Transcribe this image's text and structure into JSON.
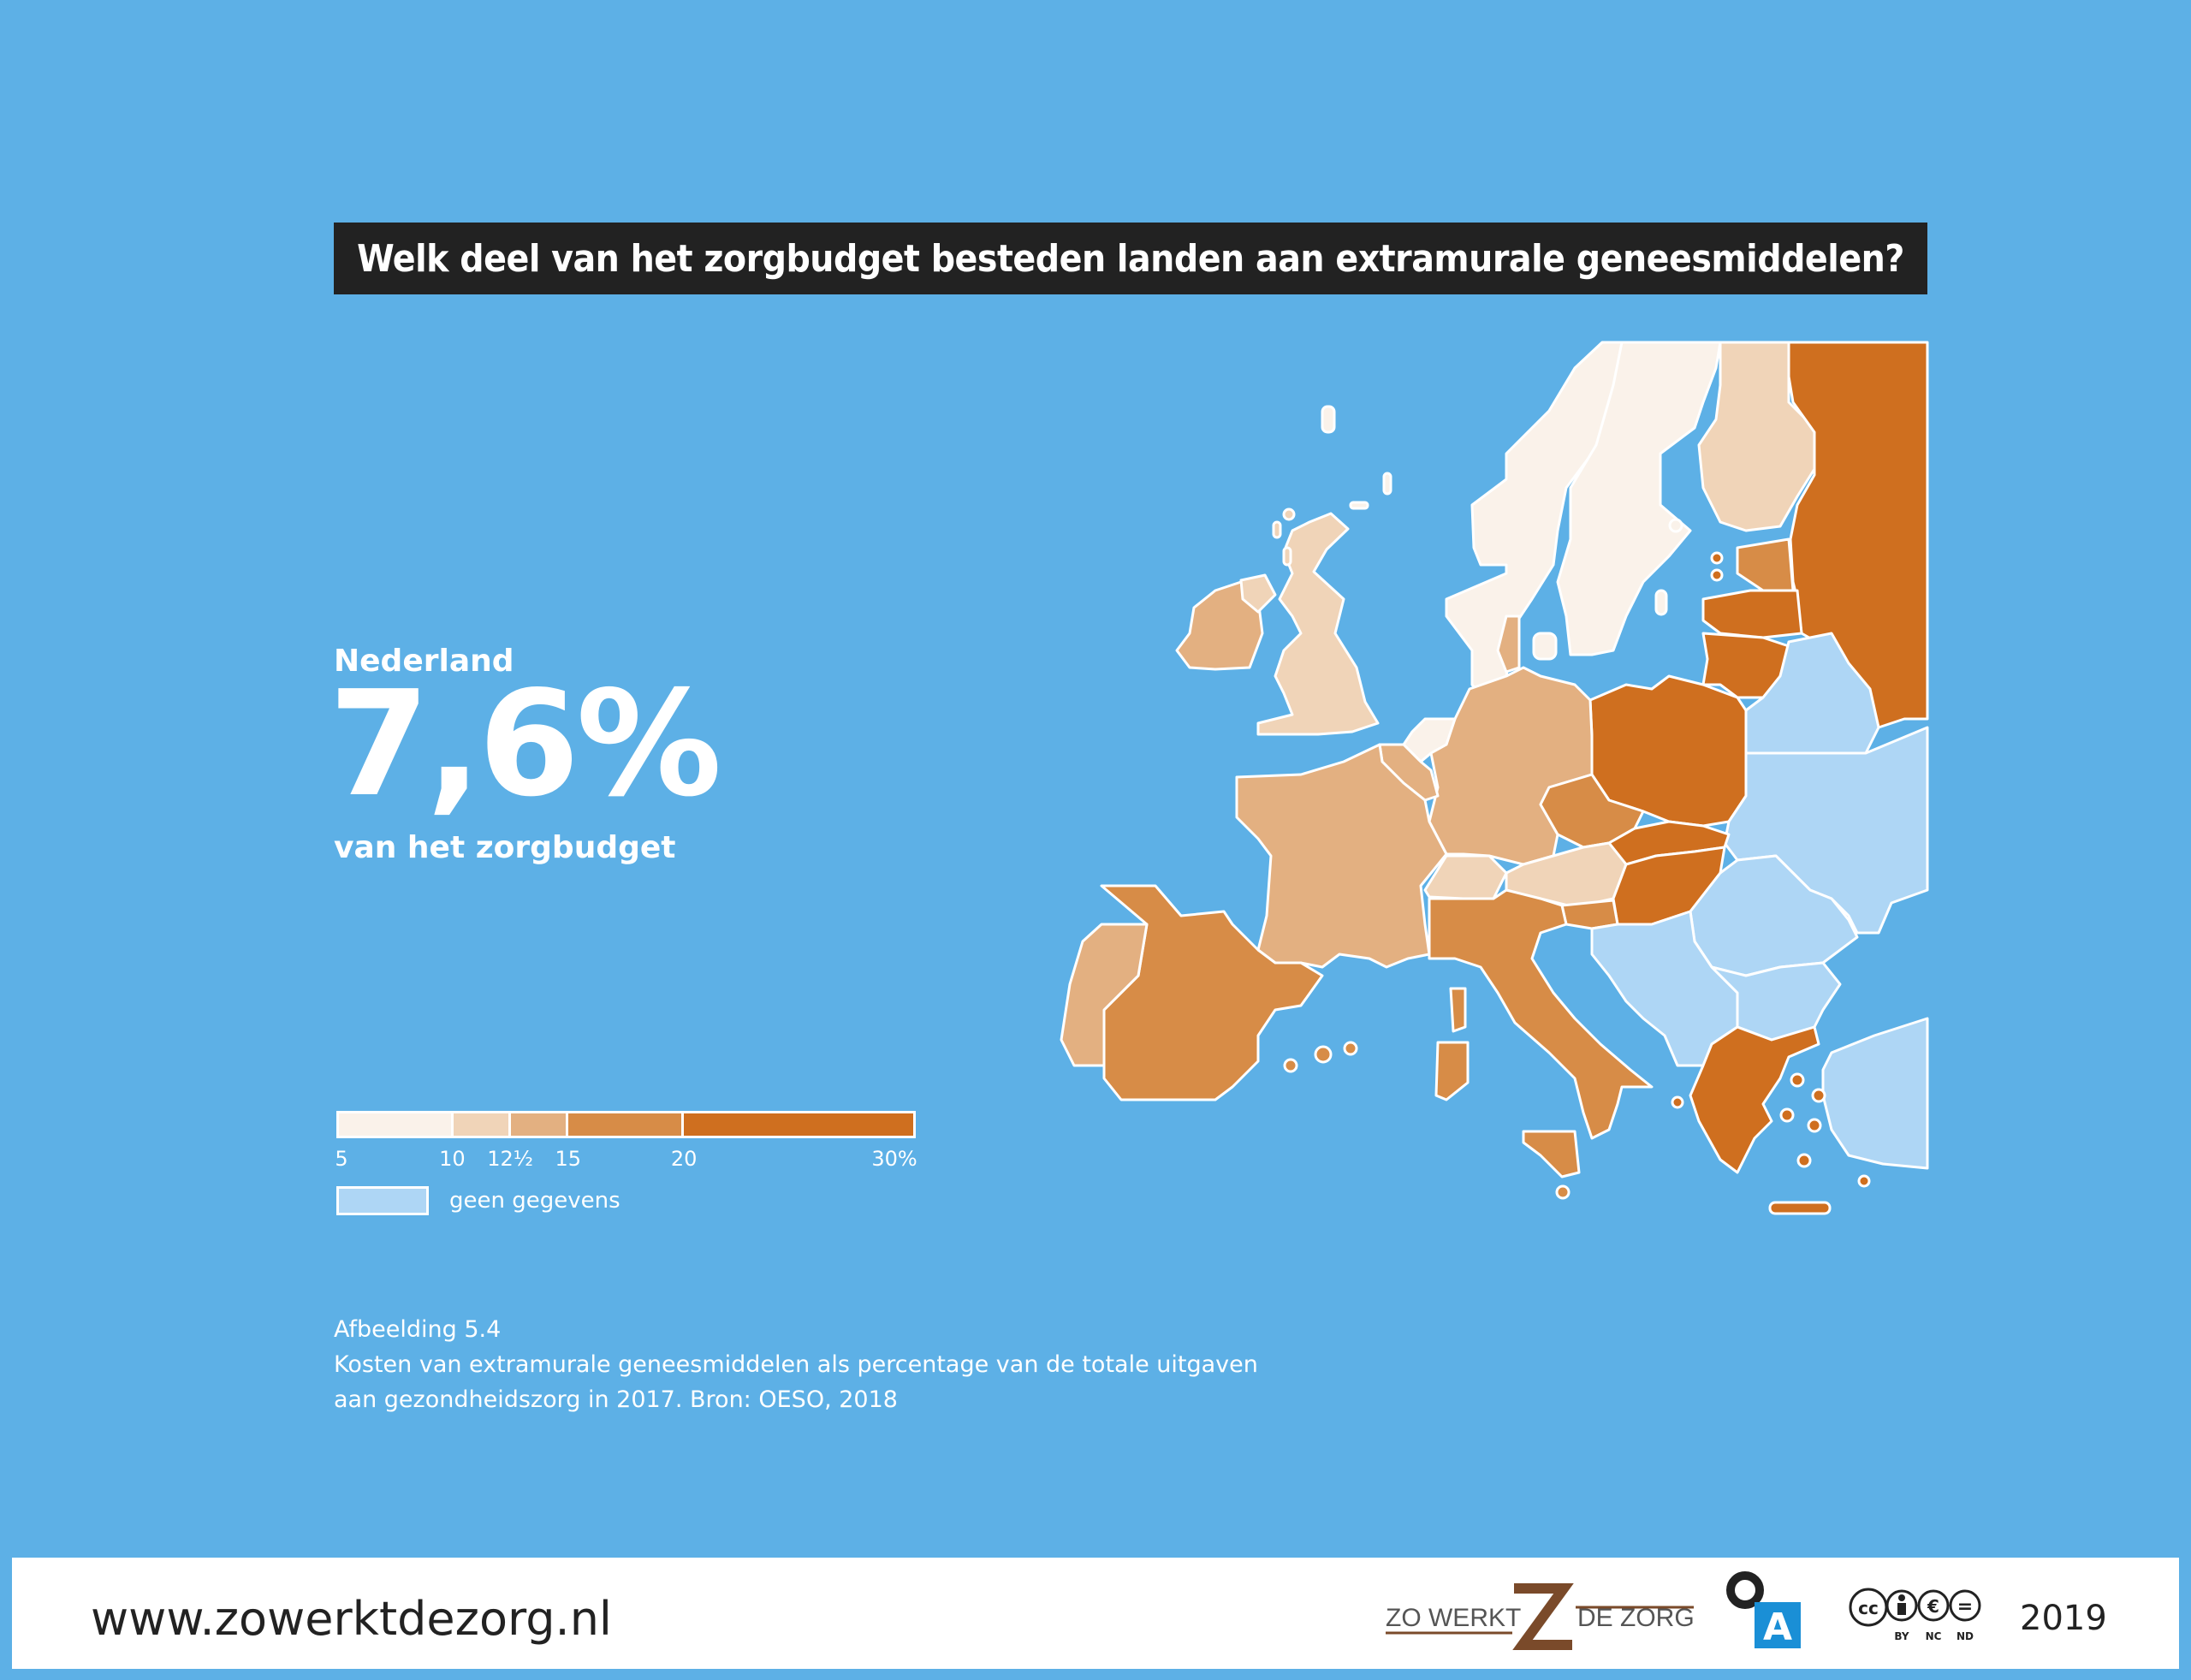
{
  "title": "Welk deel van het zorgbudget besteden landen aan extramurale geneesmiddelen?",
  "highlight": {
    "country": "Nederland",
    "value": "7,6%",
    "subtitle": "van het zorgbudget"
  },
  "legend": {
    "bins": [
      {
        "from": 5,
        "to": 10,
        "color": "#faf2ea"
      },
      {
        "from": 10,
        "to": 12.5,
        "color": "#f0d4b8"
      },
      {
        "from": 12.5,
        "to": 15,
        "color": "#e3b081"
      },
      {
        "from": 15,
        "to": 20,
        "color": "#d78c47"
      },
      {
        "from": 20,
        "to": 30,
        "color": "#cf6f1f"
      }
    ],
    "tick_labels": [
      "5",
      "10",
      "12½",
      "15",
      "20",
      "30%"
    ],
    "no_data": {
      "label": "geen gegevens",
      "color": "#aed6f5"
    }
  },
  "caption": {
    "label": "Afbeelding 5.4",
    "line1": "Kosten van extramurale geneesmiddelen als percentage van de totale uitgaven",
    "line2": "aan gezondheidszorg in 2017. Bron: OESO, 2018"
  },
  "map_data": {
    "classes": {
      "Noorwegen": "5-10",
      "Zweden": "5-10",
      "Nederland": "5-10",
      "Finland": "10-12.5",
      "Verenigd Koninkrijk": "10-12.5",
      "Oostenrijk": "10-12.5",
      "Zwitserland": "10-12.5",
      "Ierland": "12.5-15",
      "Frankrijk": "12.5-15",
      "Duitsland": "12.5-15",
      "België": "12.5-15",
      "Portugal": "12.5-15",
      "Denemarken": "12.5-15",
      "Spanje": "15-20",
      "Italië": "15-20",
      "Tsjechië": "15-20",
      "Estland": "15-20",
      "Slovenië": "15-20",
      "Rusland": "20-30",
      "Polen": "20-30",
      "Slowakije": "20-30",
      "Hongarije": "20-30",
      "Letland": "20-30",
      "Litouwen": "20-30",
      "Griekenland": "20-30",
      "Wit-Rusland": "geen gegevens",
      "Oekraïne": "geen gegevens",
      "Roemenië": "geen gegevens",
      "Bulgarije": "geen gegevens",
      "Turkije": "geen gegevens",
      "Balkan": "geen gegevens"
    }
  },
  "footer": {
    "url": "www.zowerktdezorg.nl",
    "logo_left": "ZO WERKT",
    "logo_right": "DE ZORG",
    "publisher_letter": "A",
    "cc_marks": [
      "BY",
      "NC",
      "ND"
    ],
    "year": "2019"
  }
}
